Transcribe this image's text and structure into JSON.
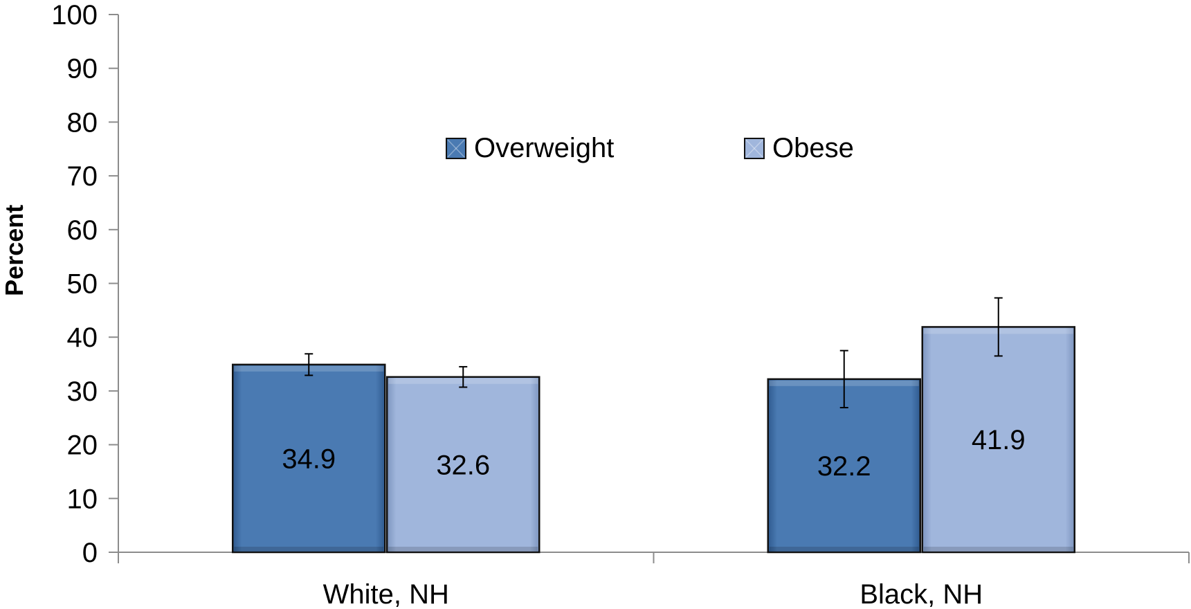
{
  "chart_data": {
    "type": "bar",
    "title": "",
    "xlabel": "",
    "ylabel": "Percent",
    "ylim": [
      0,
      100
    ],
    "yticks": [
      0,
      10,
      20,
      30,
      40,
      50,
      60,
      70,
      80,
      90,
      100
    ],
    "categories": [
      "White, NH",
      "Black, NH"
    ],
    "series": [
      {
        "name": "Overweight",
        "color": "#4a7ab2",
        "values": [
          34.9,
          32.2
        ],
        "error_low": [
          32.9,
          26.9
        ],
        "error_high": [
          36.9,
          37.5
        ]
      },
      {
        "name": "Obese",
        "color": "#a0b6dc",
        "values": [
          32.6,
          41.9
        ],
        "error_low": [
          30.7,
          36.5
        ],
        "error_high": [
          34.5,
          47.3
        ]
      }
    ],
    "data_labels": [
      [
        "34.9",
        "32.2"
      ],
      [
        "32.6",
        "41.9"
      ]
    ],
    "legend_position": "top-center",
    "grid": false
  }
}
